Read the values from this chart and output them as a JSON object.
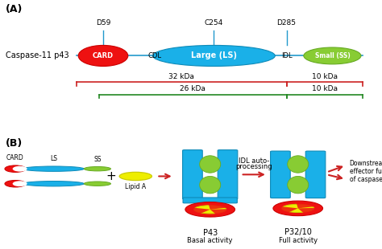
{
  "background_color": "#ffffff",
  "panel_A_label": "(A)",
  "panel_B_label": "(B)",
  "caspase_label": "Caspase-11 p43",
  "colors": {
    "blue": "#1ab0e8",
    "blue_edge": "#0e8ab8",
    "red": "#ee1111",
    "red_edge": "#cc0000",
    "green": "#88cc33",
    "green_edge": "#66aa22",
    "yellow": "#eeee00",
    "yellow_edge": "#cccc00",
    "dark_red": "#cc2222",
    "dark_green": "#228822",
    "line_blue": "#2299cc",
    "text_black": "#222222"
  },
  "figsize": [
    4.74,
    3.1
  ],
  "dpi": 100
}
